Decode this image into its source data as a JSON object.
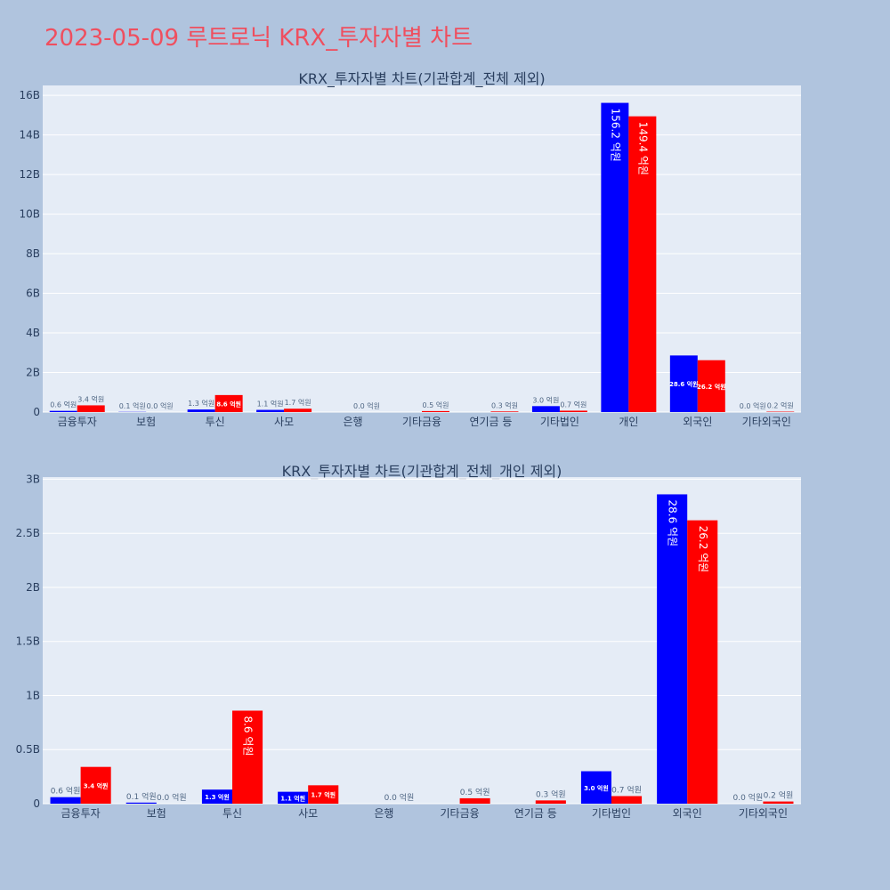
{
  "page": {
    "title": "2023-05-09 루트로닉 KRX_투자자별 차트"
  },
  "colors": {
    "buy": "#0000ff",
    "sell": "#ff0000",
    "plot_bg": "#e5ecf6",
    "paper_bg": "#b0c4de",
    "title": "#ef4f5f"
  },
  "chart_data": [
    {
      "type": "bar",
      "title": "KRX_투자자별 차트(기관합계_전체 제외)",
      "categories": [
        "금융투자",
        "보험",
        "투신",
        "사모",
        "은행",
        "기타금융",
        "연기금 등",
        "기타법인",
        "개인",
        "외국인",
        "기타외국인"
      ],
      "series": [
        {
          "values": [
            60000000,
            10000000,
            130000000,
            110000000,
            0,
            0,
            0,
            300000000,
            15620000000,
            2860000000,
            0
          ],
          "labels": [
            "0.6 억원",
            "0.1 억원",
            "1.3 억원",
            "1.1 억원",
            "",
            "",
            "",
            "3.0 억원",
            "156.2 억원",
            "28.6 억원",
            "0.0 억원"
          ]
        },
        {
          "values": [
            340000000,
            0,
            860000000,
            170000000,
            0,
            50000000,
            30000000,
            70000000,
            14940000000,
            2620000000,
            20000000
          ],
          "labels": [
            "3.4 억원",
            "0.0 억원",
            "8.6 억원",
            "1.7 억원",
            "0.0 억원",
            "0.5 억원",
            "0.3 억원",
            "0.7 억원",
            "149.4 억원",
            "26.2 억원",
            "0.2 억원"
          ]
        }
      ],
      "ylim": [
        0,
        16500000000
      ],
      "yticks": [
        0,
        2000000000,
        4000000000,
        6000000000,
        8000000000,
        10000000000,
        12000000000,
        14000000000,
        16000000000
      ],
      "ytick_labels": [
        "0",
        "2B",
        "4B",
        "6B",
        "8B",
        "10B",
        "12B",
        "14B",
        "16B"
      ],
      "grid": true
    },
    {
      "type": "bar",
      "title": "KRX_투자자별 차트(기관합계_전체_개인 제외)",
      "categories": [
        "금융투자",
        "보험",
        "투신",
        "사모",
        "은행",
        "기타금융",
        "연기금 등",
        "기타법인",
        "외국인",
        "기타외국인"
      ],
      "series": [
        {
          "values": [
            60000000,
            10000000,
            130000000,
            110000000,
            0,
            0,
            0,
            300000000,
            2860000000,
            0
          ],
          "labels": [
            "0.6 억원",
            "0.1 억원",
            "1.3 억원",
            "1.1 억원",
            "",
            "",
            "",
            "3.0 억원",
            "28.6 억원",
            "0.0 억원"
          ]
        },
        {
          "values": [
            340000000,
            0,
            860000000,
            170000000,
            0,
            50000000,
            30000000,
            70000000,
            2620000000,
            20000000
          ],
          "labels": [
            "3.4 억원",
            "0.0 억원",
            "8.6 억원",
            "1.7 억원",
            "0.0 억원",
            "0.5 억원",
            "0.3 억원",
            "0.7 억원",
            "26.2 억원",
            "0.2 억원"
          ]
        }
      ],
      "ylim": [
        0,
        3020000000
      ],
      "yticks": [
        0,
        500000000,
        1000000000,
        1500000000,
        2000000000,
        2500000000,
        3000000000
      ],
      "ytick_labels": [
        "0",
        "0.5B",
        "1B",
        "1.5B",
        "2B",
        "2.5B",
        "3B"
      ],
      "grid": true
    }
  ]
}
